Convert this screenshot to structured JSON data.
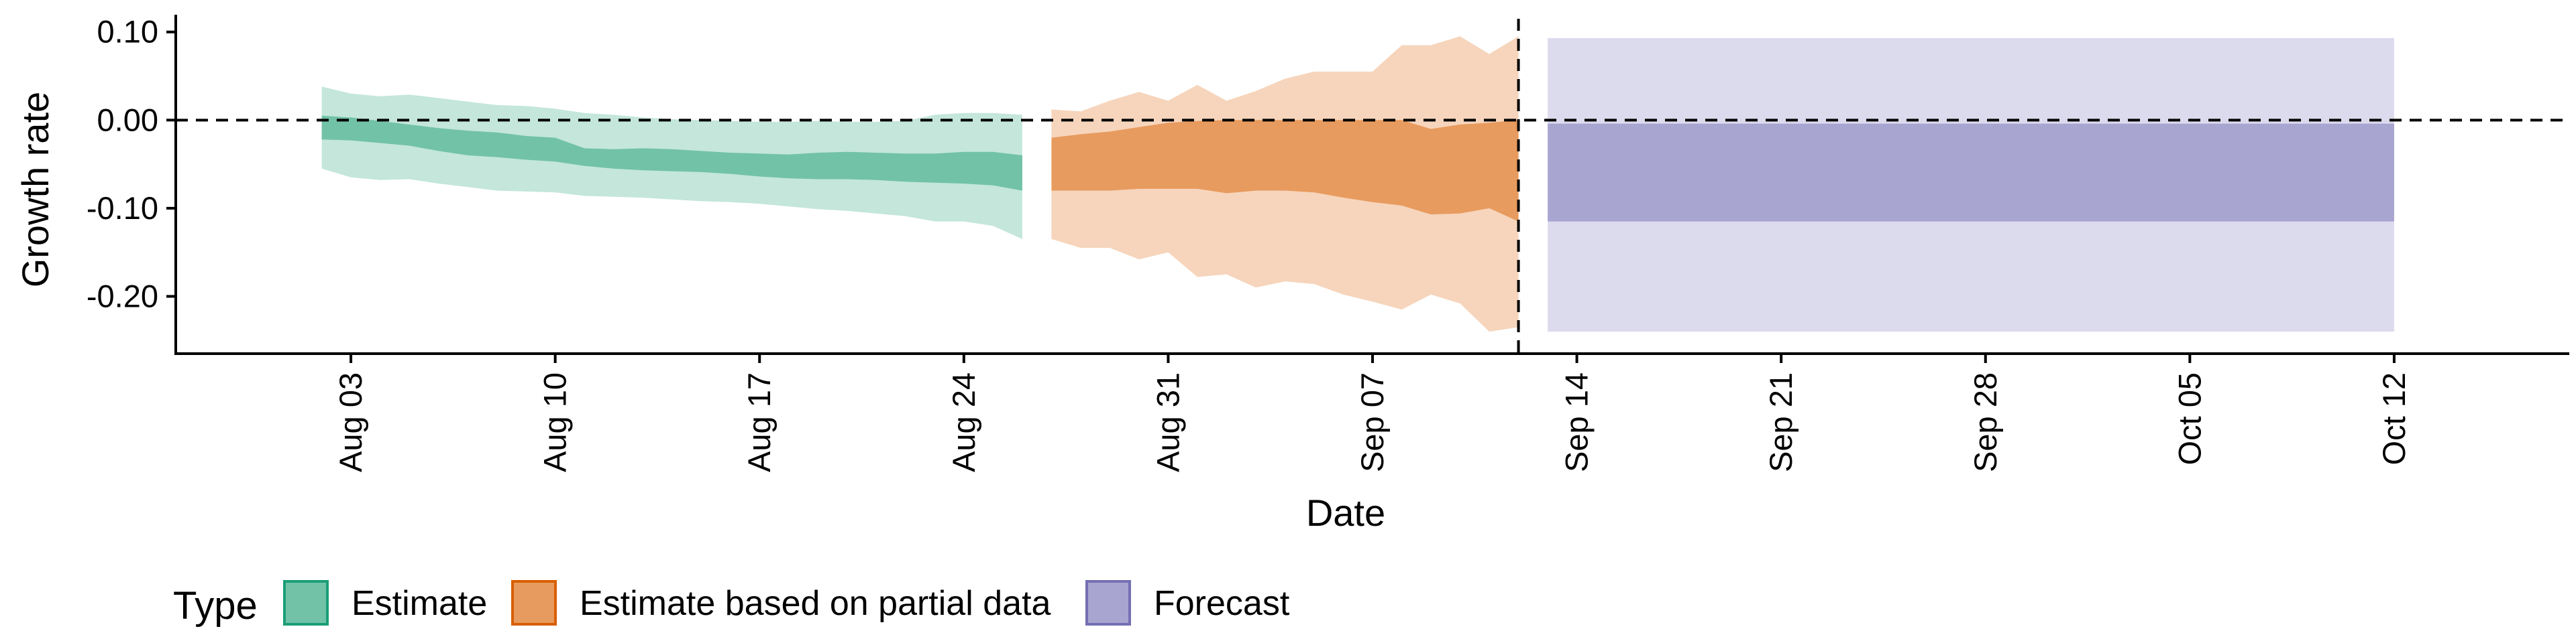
{
  "chart_data": {
    "type": "area",
    "title": "",
    "xlabel": "Date",
    "ylabel": "Growth rate",
    "x_range": [
      "2023-07-28",
      "2023-10-18"
    ],
    "ylim": [
      -0.265,
      0.115
    ],
    "x_ticks": [
      {
        "date": "2023-08-03",
        "label": "Aug 03"
      },
      {
        "date": "2023-08-10",
        "label": "Aug 10"
      },
      {
        "date": "2023-08-17",
        "label": "Aug 17"
      },
      {
        "date": "2023-08-24",
        "label": "Aug 24"
      },
      {
        "date": "2023-08-31",
        "label": "Aug 31"
      },
      {
        "date": "2023-09-07",
        "label": "Sep 07"
      },
      {
        "date": "2023-09-14",
        "label": "Sep 14"
      },
      {
        "date": "2023-09-21",
        "label": "Sep 21"
      },
      {
        "date": "2023-09-28",
        "label": "Sep 28"
      },
      {
        "date": "2023-10-05",
        "label": "Oct 05"
      },
      {
        "date": "2023-10-12",
        "label": "Oct 12"
      }
    ],
    "y_ticks": [
      {
        "value": 0.1,
        "label": "0.10"
      },
      {
        "value": 0.0,
        "label": "0.00"
      },
      {
        "value": -0.1,
        "label": "-0.10"
      },
      {
        "value": -0.2,
        "label": "-0.20"
      }
    ],
    "reference_lines": {
      "horizontal_y": 0.0,
      "vertical_date": "2023-09-12"
    },
    "grid": false,
    "legend": {
      "title": "Type",
      "placement": "bottom-left",
      "entries": [
        "Estimate",
        "Estimate based on partial data",
        "Forecast"
      ]
    },
    "colors": {
      "estimate_outer": "#c4e6db",
      "estimate_inner": "#72c2a8",
      "estimate_border": "#1b9e77",
      "partial_outer": "#f6d5bc",
      "partial_inner": "#e89b5e",
      "partial_border": "#d95f02",
      "forecast_outer": "#dcdaed",
      "forecast_inner": "#a9a5d1",
      "forecast_border": "#7570b3"
    },
    "series": [
      {
        "name": "Estimate",
        "dates": [
          "2023-08-02",
          "2023-08-03",
          "2023-08-04",
          "2023-08-05",
          "2023-08-06",
          "2023-08-07",
          "2023-08-08",
          "2023-08-09",
          "2023-08-10",
          "2023-08-11",
          "2023-08-12",
          "2023-08-13",
          "2023-08-14",
          "2023-08-15",
          "2023-08-16",
          "2023-08-17",
          "2023-08-18",
          "2023-08-19",
          "2023-08-20",
          "2023-08-21",
          "2023-08-22",
          "2023-08-23",
          "2023-08-24",
          "2023-08-25",
          "2023-08-26"
        ],
        "outer_lower": [
          -0.055,
          -0.065,
          -0.068,
          -0.067,
          -0.072,
          -0.076,
          -0.08,
          -0.081,
          -0.082,
          -0.086,
          -0.087,
          -0.088,
          -0.09,
          -0.092,
          -0.093,
          -0.095,
          -0.098,
          -0.101,
          -0.103,
          -0.106,
          -0.109,
          -0.115,
          -0.115,
          -0.12,
          -0.135
        ],
        "inner_lower": [
          -0.022,
          -0.023,
          -0.026,
          -0.029,
          -0.035,
          -0.04,
          -0.042,
          -0.045,
          -0.047,
          -0.052,
          -0.055,
          -0.057,
          -0.058,
          -0.059,
          -0.061,
          -0.064,
          -0.066,
          -0.067,
          -0.067,
          -0.068,
          -0.07,
          -0.071,
          -0.072,
          -0.074,
          -0.08
        ],
        "inner_upper": [
          0.005,
          0.003,
          -0.001,
          -0.005,
          -0.009,
          -0.012,
          -0.014,
          -0.018,
          -0.02,
          -0.032,
          -0.033,
          -0.032,
          -0.033,
          -0.035,
          -0.037,
          -0.038,
          -0.039,
          -0.037,
          -0.036,
          -0.037,
          -0.038,
          -0.038,
          -0.036,
          -0.036,
          -0.04
        ],
        "outer_upper": [
          0.038,
          0.03,
          0.027,
          0.029,
          0.025,
          0.021,
          0.017,
          0.016,
          0.013,
          0.008,
          0.006,
          0.003,
          0.001,
          0.0,
          -0.001,
          -0.002,
          -0.002,
          -0.001,
          -0.002,
          -0.002,
          -0.001,
          0.006,
          0.008,
          0.008,
          0.006
        ]
      },
      {
        "name": "Estimate based on partial data",
        "dates": [
          "2023-08-27",
          "2023-08-28",
          "2023-08-29",
          "2023-08-30",
          "2023-08-31",
          "2023-09-01",
          "2023-09-02",
          "2023-09-03",
          "2023-09-04",
          "2023-09-05",
          "2023-09-06",
          "2023-09-07",
          "2023-09-08",
          "2023-09-09",
          "2023-09-10",
          "2023-09-11",
          "2023-09-12"
        ],
        "outer_lower": [
          -0.135,
          -0.145,
          -0.145,
          -0.158,
          -0.15,
          -0.178,
          -0.175,
          -0.19,
          -0.183,
          -0.186,
          -0.198,
          -0.206,
          -0.215,
          -0.198,
          -0.208,
          -0.24,
          -0.235
        ],
        "inner_lower": [
          -0.08,
          -0.08,
          -0.08,
          -0.078,
          -0.078,
          -0.078,
          -0.083,
          -0.08,
          -0.08,
          -0.082,
          -0.088,
          -0.093,
          -0.097,
          -0.107,
          -0.106,
          -0.1,
          -0.115
        ],
        "inner_upper": [
          -0.02,
          -0.016,
          -0.013,
          -0.008,
          -0.003,
          -0.001,
          0.0,
          0.0,
          0.0,
          0.0,
          0.0,
          0.0,
          0.0,
          -0.01,
          -0.005,
          -0.003,
          0.0
        ],
        "outer_upper": [
          0.012,
          0.01,
          0.022,
          0.032,
          0.022,
          0.04,
          0.022,
          0.033,
          0.047,
          0.055,
          0.055,
          0.055,
          0.085,
          0.085,
          0.095,
          0.075,
          0.095
        ]
      },
      {
        "name": "Forecast",
        "dates": [
          "2023-09-13",
          "2023-10-12"
        ],
        "outer_lower": [
          -0.24,
          -0.24
        ],
        "inner_lower": [
          -0.115,
          -0.115
        ],
        "inner_upper": [
          -0.004,
          -0.004
        ],
        "outer_upper": [
          0.093,
          0.093
        ]
      }
    ]
  }
}
